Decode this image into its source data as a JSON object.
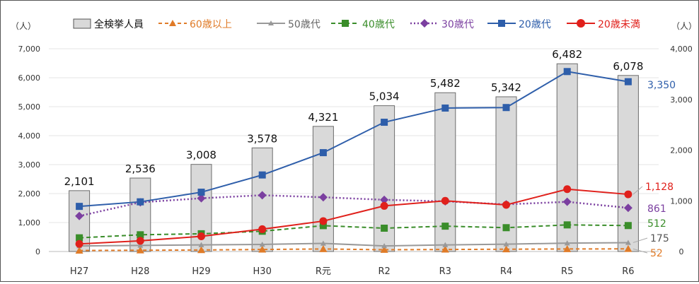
{
  "chart_data": {
    "type": "bar",
    "left_axis_unit": "（人）",
    "right_axis_unit": "（人）",
    "categories": [
      "H27",
      "H28",
      "H29",
      "H30",
      "R元",
      "R2",
      "R3",
      "R4",
      "R5",
      "R6"
    ],
    "yticks_left": [
      "0",
      "1,000",
      "2,000",
      "3,000",
      "4,000",
      "5,000",
      "6,000",
      "7,000"
    ],
    "yticks_right": [
      "0",
      "1,000",
      "2,000",
      "3,000",
      "4,000"
    ],
    "ylim_left": [
      0,
      7000
    ],
    "ylim_right": [
      0,
      4000
    ],
    "bars": {
      "name": "全検挙人員",
      "values": [
        2101,
        2536,
        3008,
        3578,
        4321,
        5034,
        5482,
        5342,
        6482,
        6078
      ],
      "labels": [
        "2,101",
        "2,536",
        "3,008",
        "3,578",
        "4,321",
        "5,034",
        "5,482",
        "5,342",
        "6,482",
        "6,078"
      ],
      "color": "#d9d9d9"
    },
    "series": [
      {
        "key": "s60",
        "name": "60歳以上",
        "axis": "right",
        "color": "#e07b28",
        "dash": "5,4",
        "marker": "triangle",
        "values": [
          20,
          25,
          30,
          40,
          50,
          35,
          40,
          45,
          50,
          52
        ],
        "end_label": "52"
      },
      {
        "key": "s50",
        "name": "50歳代",
        "axis": "right",
        "color": "#999999",
        "dash": "",
        "marker": "triangle",
        "values": [
          110,
          120,
          130,
          140,
          160,
          110,
          130,
          145,
          165,
          175
        ],
        "end_label": "175"
      },
      {
        "key": "s40",
        "name": "40歳代",
        "axis": "right",
        "color": "#3a8d2a",
        "dash": "6,4",
        "marker": "square",
        "values": [
          270,
          330,
          350,
          400,
          510,
          460,
          500,
          470,
          525,
          512
        ],
        "end_label": "512"
      },
      {
        "key": "s30",
        "name": "30歳代",
        "axis": "right",
        "color": "#7b3fa0",
        "dash": "2,3",
        "marker": "diamond",
        "values": [
          700,
          970,
          1050,
          1110,
          1070,
          1020,
          990,
          930,
          980,
          861
        ],
        "end_label": "861"
      },
      {
        "key": "s20",
        "name": "20歳代",
        "axis": "right",
        "color": "#2e5eaa",
        "dash": "",
        "marker": "square",
        "values": [
          890,
          980,
          1170,
          1510,
          1950,
          2550,
          2830,
          2840,
          3550,
          3350
        ],
        "end_label": "3,350"
      },
      {
        "key": "su20",
        "name": "20歳未満",
        "axis": "right",
        "color": "#e0201b",
        "dash": "",
        "marker": "circle",
        "values": [
          150,
          210,
          300,
          440,
          600,
          900,
          1000,
          920,
          1230,
          1128
        ],
        "end_label": "1,128"
      }
    ]
  }
}
